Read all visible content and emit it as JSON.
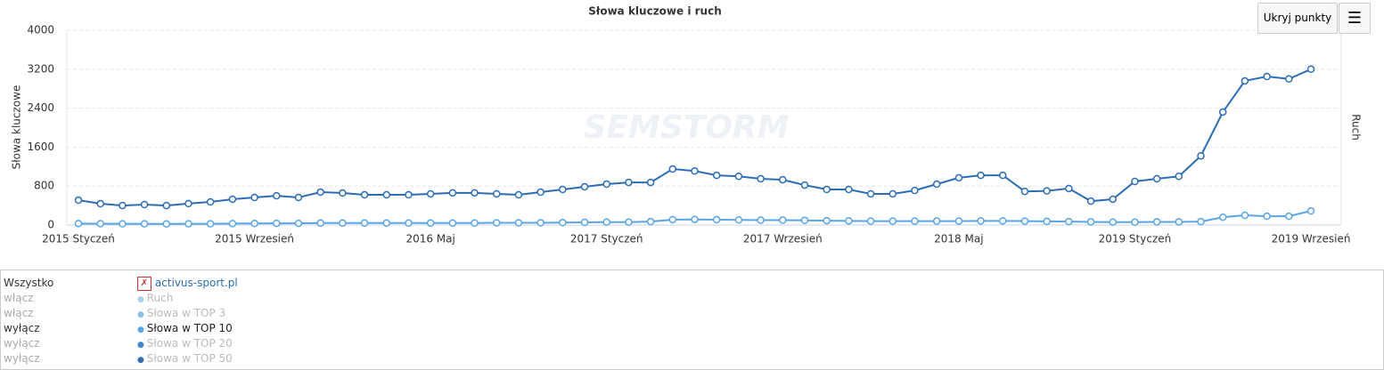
{
  "chart_data": {
    "type": "line",
    "title": "Słowa kluczowe i ruch",
    "y_label": "Słowa kluczowe",
    "y2_label": "Ruch",
    "watermark": "SEMSTORM",
    "categories": [
      "2015 Styczeń",
      null,
      null,
      null,
      null,
      null,
      null,
      null,
      "2015 Wrzesień",
      null,
      null,
      null,
      null,
      null,
      null,
      null,
      "2016 Maj",
      null,
      null,
      null,
      null,
      null,
      null,
      null,
      "2017 Styczeń",
      null,
      null,
      null,
      null,
      null,
      null,
      null,
      "2017 Wrzesień",
      null,
      null,
      null,
      null,
      null,
      null,
      null,
      "2018 Maj",
      null,
      null,
      null,
      null,
      null,
      null,
      null,
      "2019 Styczeń",
      null,
      null,
      null,
      null,
      null,
      null,
      null,
      "2019 Wrzesień"
    ],
    "series": [
      {
        "color": "#2c6db4",
        "values": [
          511,
          438,
          400,
          420,
          400,
          440,
          475,
          530,
          566,
          600,
          566,
          675,
          657,
          620,
          620,
          620,
          640,
          660,
          660,
          640,
          620,
          675,
          730,
          785,
          840,
          875,
          875,
          1150,
          1110,
          1020,
          1000,
          950,
          930,
          820,
          730,
          730,
          640,
          640,
          710,
          840,
          970,
          1020,
          1020,
          690,
          700,
          750,
          490,
          530,
          895,
          950,
          1000,
          1420,
          2320,
          2960,
          3050,
          3000,
          3200
        ]
      },
      {
        "color": "#5aa5e4",
        "values": [
          30,
          28,
          25,
          25,
          22,
          25,
          25,
          30,
          32,
          35,
          35,
          40,
          40,
          40,
          40,
          40,
          40,
          42,
          42,
          45,
          45,
          45,
          50,
          55,
          60,
          60,
          70,
          110,
          115,
          110,
          105,
          100,
          100,
          95,
          90,
          85,
          80,
          80,
          80,
          80,
          80,
          85,
          85,
          80,
          75,
          70,
          65,
          60,
          60,
          65,
          65,
          70,
          160,
          200,
          180,
          180,
          290
        ]
      }
    ],
    "ylim": [
      0,
      4000
    ],
    "yticks": [
      0,
      800,
      1600,
      2400,
      3200,
      4000
    ],
    "grid": true
  },
  "ui": {
    "hide_points_button": "Ukryj punkty",
    "site": "activus-sport.pl",
    "all_label": "Wszystko",
    "legend": [
      {
        "action": "włącz",
        "label": "Ruch",
        "color": "#a9cdf0",
        "enabled": false
      },
      {
        "action": "włącz",
        "label": "Słowa w TOP 3",
        "color": "#8fbde8",
        "enabled": false
      },
      {
        "action": "wyłącz",
        "label": "Słowa w TOP 10",
        "color": "#5aa5e4",
        "enabled": true
      },
      {
        "action": "wyłącz",
        "label": "Słowa w TOP 20",
        "color": "#3f86cc",
        "enabled": false
      },
      {
        "action": "wyłącz",
        "label": "Słowa w TOP 50",
        "color": "#2c6db4",
        "enabled": false
      }
    ]
  }
}
